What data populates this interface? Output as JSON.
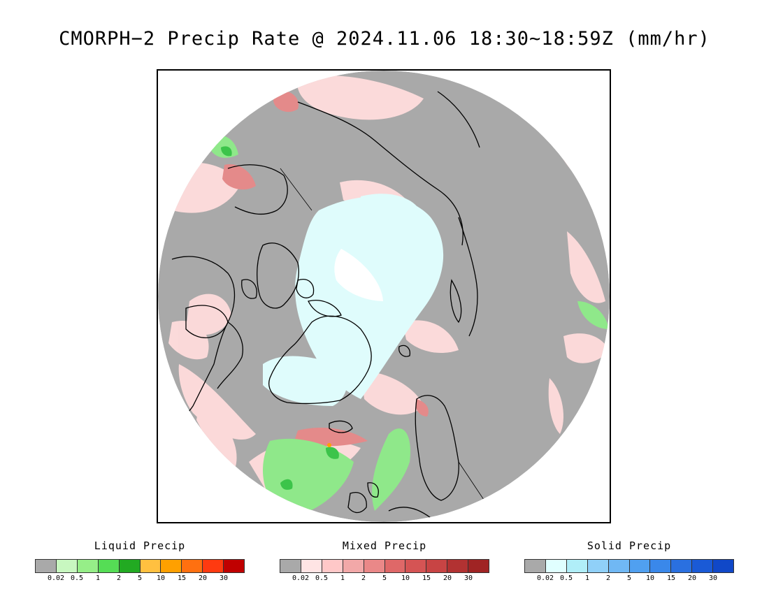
{
  "title": "CMORPH−2 Precip Rate @ 2024.11.06 18:30~18:59Z (mm/hr)",
  "map": {
    "projection": "north-polar-stereographic",
    "colors": {
      "no_precip": "#a9a9a9",
      "background": "#ffffff",
      "coastline": "#000000"
    }
  },
  "legends": [
    {
      "id": "liquid",
      "title": "Liquid Precip",
      "colors": [
        "#a9a9a9",
        "#c8f7c0",
        "#96ee88",
        "#55dd55",
        "#22aa22",
        "#ffc040",
        "#ffa000",
        "#ff7010",
        "#ff3a10",
        "#c00000"
      ],
      "ticks": [
        "0.02",
        "0.5",
        "1",
        "2",
        "5",
        "10",
        "15",
        "20",
        "30"
      ]
    },
    {
      "id": "mixed",
      "title": "Mixed Precip",
      "colors": [
        "#a9a9a9",
        "#ffe4e4",
        "#ffc8c8",
        "#f2a8a8",
        "#ea8888",
        "#df6868",
        "#d55454",
        "#c84444",
        "#b23232",
        "#a02424"
      ],
      "ticks": [
        "0.02",
        "0.5",
        "1",
        "2",
        "5",
        "10",
        "15",
        "20",
        "30"
      ]
    },
    {
      "id": "solid",
      "title": "Solid Precip",
      "colors": [
        "#a9a9a9",
        "#e0ffff",
        "#b0eef8",
        "#90d0f8",
        "#70b8f4",
        "#50a0f0",
        "#3a88ea",
        "#2a70e0",
        "#1a5ad6",
        "#1048c8"
      ],
      "ticks": [
        "0.02",
        "0.5",
        "1",
        "2",
        "5",
        "10",
        "15",
        "20",
        "30"
      ]
    }
  ]
}
